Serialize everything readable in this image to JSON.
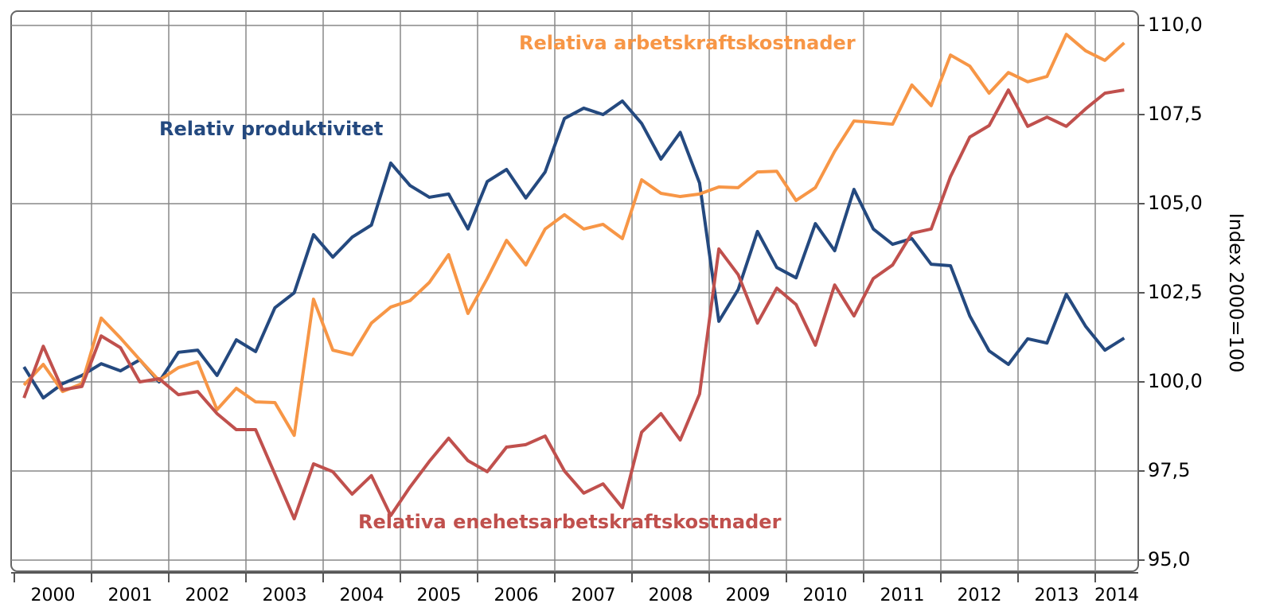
{
  "chart_data": {
    "type": "line",
    "y_label": "Index 2000=100",
    "categories": [
      "2000",
      null,
      null,
      null,
      "2001",
      null,
      null,
      null,
      "2002",
      null,
      null,
      null,
      "2003",
      null,
      null,
      null,
      "2004",
      null,
      null,
      null,
      "2005",
      null,
      null,
      null,
      "2006",
      null,
      null,
      null,
      "2007",
      null,
      null,
      null,
      "2008",
      null,
      null,
      null,
      "2009",
      null,
      null,
      null,
      "2010",
      null,
      null,
      null,
      "2011",
      null,
      null,
      null,
      "2012",
      null,
      null,
      null,
      "2013",
      null,
      null,
      null,
      "2014",
      null
    ],
    "series": [
      {
        "name": "Relativ produktivitet",
        "color": "#24497f",
        "values": [
          100.42,
          99.55,
          99.95,
          100.18,
          100.51,
          100.31,
          100.62,
          100.0,
          100.83,
          100.89,
          100.18,
          101.18,
          100.85,
          102.08,
          102.5,
          104.13,
          103.5,
          104.06,
          104.4,
          106.14,
          105.51,
          105.18,
          105.27,
          104.29,
          105.62,
          105.96,
          105.16,
          105.89,
          107.39,
          107.68,
          107.5,
          107.88,
          107.25,
          106.25,
          107.0,
          105.58,
          101.7,
          102.59,
          104.22,
          103.21,
          102.92,
          104.44,
          103.68,
          105.4,
          104.29,
          103.86,
          104.02,
          103.3,
          103.26,
          101.85,
          100.87,
          100.49,
          101.21,
          101.09,
          102.46,
          101.56,
          100.89,
          101.23
        ]
      },
      {
        "name": "Relativa arbetskraftskostnader",
        "color": "#f79646",
        "values": [
          99.91,
          100.49,
          99.73,
          99.95,
          101.79,
          101.23,
          100.62,
          100.04,
          100.4,
          100.56,
          99.22,
          99.82,
          99.44,
          99.42,
          98.5,
          102.32,
          100.89,
          100.76,
          101.65,
          102.1,
          102.28,
          102.79,
          103.57,
          101.92,
          102.9,
          103.97,
          103.28,
          104.29,
          104.69,
          104.29,
          104.42,
          104.02,
          105.67,
          105.29,
          105.2,
          105.27,
          105.47,
          105.45,
          105.89,
          105.91,
          105.09,
          105.45,
          106.47,
          107.32,
          107.28,
          107.23,
          108.33,
          107.75,
          109.17,
          108.86,
          108.1,
          108.68,
          108.42,
          108.57,
          109.75,
          109.29,
          109.02,
          109.51
        ]
      },
      {
        "name": "Relativa enehetsarbetskraftskostnader",
        "color": "#c0504d",
        "values": [
          99.55,
          101.0,
          99.78,
          99.87,
          101.29,
          100.96,
          100.0,
          100.09,
          99.64,
          99.73,
          99.11,
          98.66,
          98.66,
          97.41,
          96.16,
          97.7,
          97.48,
          96.85,
          97.37,
          96.25,
          97.05,
          97.77,
          98.42,
          97.79,
          97.48,
          98.17,
          98.24,
          98.48,
          97.5,
          96.88,
          97.14,
          96.47,
          98.59,
          99.11,
          98.37,
          99.66,
          103.73,
          103.01,
          101.65,
          102.63,
          102.17,
          101.03,
          102.72,
          101.85,
          102.9,
          103.28,
          104.17,
          104.29,
          105.76,
          106.87,
          107.19,
          108.19,
          107.17,
          107.43,
          107.17,
          107.66,
          108.1,
          108.19
        ]
      }
    ],
    "ylim": [
      95,
      110
    ],
    "yticks": [
      {
        "value": 95,
        "label": "95,0"
      },
      {
        "value": 97.5,
        "label": "97,5"
      },
      {
        "value": 100,
        "label": "100,0"
      },
      {
        "value": 102.5,
        "label": "102,5"
      },
      {
        "value": 105,
        "label": "105,0"
      },
      {
        "value": 107.5,
        "label": "107,5"
      },
      {
        "value": 110,
        "label": "110,0"
      }
    ],
    "grid": true
  }
}
